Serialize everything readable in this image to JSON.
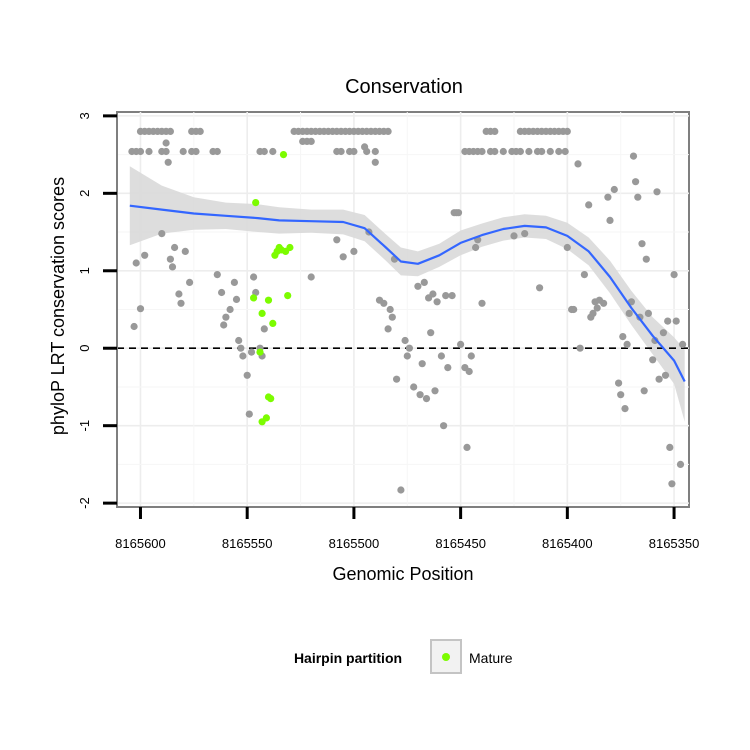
{
  "chart_data": {
    "type": "scatter",
    "title": "Conservation",
    "xlabel": "Genomic Position",
    "ylabel": "phyloP LRT conservation scores",
    "x_reversed": true,
    "xlim": [
      8165611,
      8165343
    ],
    "ylim": [
      -2.05,
      3.05
    ],
    "x_ticks": [
      8165600,
      8165550,
      8165500,
      8165450,
      8165400,
      8165350
    ],
    "x_tick_labels": [
      "8165600",
      "8165550",
      "8165500",
      "8165450",
      "8165400",
      "8165350"
    ],
    "y_ticks": [
      -2,
      -1,
      0,
      1,
      2,
      3
    ],
    "y_tick_labels": [
      "-2",
      "-1",
      "0",
      "1",
      "2",
      "3"
    ],
    "grid": true,
    "reference_line": {
      "y": 0,
      "style": "dashed",
      "color": "#000000"
    },
    "colors": {
      "other": "#999999",
      "mature": "#7cfc00",
      "smooth_line": "#3366ff",
      "confidence_band": "#d9d9d9"
    },
    "legend": {
      "position": "bottom",
      "title": "Hairpin partition",
      "entries": [
        {
          "label": "Mature",
          "color": "#7cfc00"
        }
      ]
    },
    "series": [
      {
        "category": "other",
        "points": [
          [
            8165603,
            0.28
          ],
          [
            8165602,
            1.1
          ],
          [
            8165600,
            0.51
          ],
          [
            8165598,
            1.2
          ],
          [
            8165590,
            1.48
          ],
          [
            8165588,
            2.65
          ],
          [
            8165587,
            2.4
          ],
          [
            8165586,
            1.15
          ],
          [
            8165585,
            1.05
          ],
          [
            8165584,
            1.3
          ],
          [
            8165582,
            0.7
          ],
          [
            8165581,
            0.58
          ],
          [
            8165579,
            1.25
          ],
          [
            8165577,
            0.85
          ],
          [
            8165564,
            0.95
          ],
          [
            8165562,
            0.72
          ],
          [
            8165561,
            0.3
          ],
          [
            8165560,
            0.4
          ],
          [
            8165558,
            0.5
          ],
          [
            8165556,
            0.85
          ],
          [
            8165555,
            0.63
          ],
          [
            8165554,
            0.1
          ],
          [
            8165553,
            0.0
          ],
          [
            8165552,
            -0.1
          ],
          [
            8165550,
            -0.35
          ],
          [
            8165549,
            -0.85
          ],
          [
            8165548,
            -0.05
          ],
          [
            8165547,
            0.92
          ],
          [
            8165546,
            0.72
          ],
          [
            8165544,
            0.0
          ],
          [
            8165543,
            -0.1
          ],
          [
            8165542,
            0.25
          ],
          [
            8165520,
            0.92
          ],
          [
            8165508,
            1.4
          ],
          [
            8165505,
            1.18
          ],
          [
            8165500,
            1.25
          ],
          [
            8165495,
            2.6
          ],
          [
            8165493,
            1.5
          ],
          [
            8165490,
            2.4
          ],
          [
            8165488,
            0.62
          ],
          [
            8165486,
            0.58
          ],
          [
            8165484,
            0.25
          ],
          [
            8165483,
            0.5
          ],
          [
            8165482,
            0.4
          ],
          [
            8165481,
            1.15
          ],
          [
            8165480,
            -0.4
          ],
          [
            8165478,
            -1.83
          ],
          [
            8165476,
            0.1
          ],
          [
            8165475,
            -0.1
          ],
          [
            8165474,
            0.0
          ],
          [
            8165472,
            -0.5
          ],
          [
            8165470,
            0.8
          ],
          [
            8165469,
            -0.6
          ],
          [
            8165468,
            -0.2
          ],
          [
            8165467,
            0.85
          ],
          [
            8165466,
            -0.65
          ],
          [
            8165465,
            0.65
          ],
          [
            8165464,
            0.2
          ],
          [
            8165463,
            0.7
          ],
          [
            8165462,
            -0.55
          ],
          [
            8165461,
            0.6
          ],
          [
            8165459,
            -0.1
          ],
          [
            8165458,
            -1.0
          ],
          [
            8165457,
            0.68
          ],
          [
            8165456,
            -0.25
          ],
          [
            8165454,
            0.68
          ],
          [
            8165453,
            1.75
          ],
          [
            8165452,
            1.75
          ],
          [
            8165451,
            1.75
          ],
          [
            8165450,
            0.05
          ],
          [
            8165448,
            -0.25
          ],
          [
            8165447,
            -1.28
          ],
          [
            8165446,
            -0.3
          ],
          [
            8165445,
            -0.1
          ],
          [
            8165443,
            1.3
          ],
          [
            8165442,
            1.4
          ],
          [
            8165440,
            0.58
          ],
          [
            8165425,
            1.45
          ],
          [
            8165420,
            1.48
          ],
          [
            8165413,
            0.78
          ],
          [
            8165400,
            1.3
          ],
          [
            8165398,
            0.5
          ],
          [
            8165397,
            0.5
          ],
          [
            8165395,
            2.38
          ],
          [
            8165394,
            0.0
          ],
          [
            8165392,
            0.95
          ],
          [
            8165390,
            1.85
          ],
          [
            8165389,
            0.4
          ],
          [
            8165388,
            0.45
          ],
          [
            8165387,
            0.6
          ],
          [
            8165386,
            0.52
          ],
          [
            8165385,
            0.62
          ],
          [
            8165383,
            0.58
          ],
          [
            8165381,
            1.95
          ],
          [
            8165380,
            1.65
          ],
          [
            8165378,
            2.05
          ],
          [
            8165376,
            -0.45
          ],
          [
            8165375,
            -0.6
          ],
          [
            8165374,
            0.15
          ],
          [
            8165373,
            -0.78
          ],
          [
            8165372,
            0.05
          ],
          [
            8165371,
            0.45
          ],
          [
            8165370,
            0.6
          ],
          [
            8165369,
            2.48
          ],
          [
            8165368,
            2.15
          ],
          [
            8165367,
            1.95
          ],
          [
            8165366,
            0.4
          ],
          [
            8165365,
            1.35
          ],
          [
            8165364,
            -0.55
          ],
          [
            8165363,
            1.15
          ],
          [
            8165362,
            0.45
          ],
          [
            8165360,
            -0.15
          ],
          [
            8165359,
            0.1
          ],
          [
            8165358,
            2.02
          ],
          [
            8165357,
            -0.4
          ],
          [
            8165355,
            0.2
          ],
          [
            8165354,
            -0.35
          ],
          [
            8165353,
            0.35
          ],
          [
            8165352,
            -1.28
          ],
          [
            8165351,
            -1.75
          ],
          [
            8165350,
            0.95
          ],
          [
            8165349,
            0.35
          ],
          [
            8165347,
            -1.5
          ],
          [
            8165346,
            0.05
          ],
          [
            8165604,
            2.54
          ],
          [
            8165602,
            2.54
          ],
          [
            8165600,
            2.54
          ],
          [
            8165596,
            2.54
          ],
          [
            8165590,
            2.54
          ],
          [
            8165588,
            2.54
          ],
          [
            8165580,
            2.54
          ],
          [
            8165576,
            2.54
          ],
          [
            8165574,
            2.54
          ],
          [
            8165566,
            2.54
          ],
          [
            8165564,
            2.54
          ],
          [
            8165544,
            2.54
          ],
          [
            8165542,
            2.54
          ],
          [
            8165538,
            2.54
          ],
          [
            8165508,
            2.54
          ],
          [
            8165506,
            2.54
          ],
          [
            8165502,
            2.54
          ],
          [
            8165500,
            2.54
          ],
          [
            8165494,
            2.54
          ],
          [
            8165490,
            2.54
          ],
          [
            8165448,
            2.54
          ],
          [
            8165446,
            2.54
          ],
          [
            8165444,
            2.54
          ],
          [
            8165442,
            2.54
          ],
          [
            8165440,
            2.54
          ],
          [
            8165436,
            2.54
          ],
          [
            8165434,
            2.54
          ],
          [
            8165430,
            2.54
          ],
          [
            8165426,
            2.54
          ],
          [
            8165424,
            2.54
          ],
          [
            8165422,
            2.54
          ],
          [
            8165418,
            2.54
          ],
          [
            8165414,
            2.54
          ],
          [
            8165412,
            2.54
          ],
          [
            8165408,
            2.54
          ],
          [
            8165404,
            2.54
          ],
          [
            8165401,
            2.54
          ],
          [
            8165600,
            2.8
          ],
          [
            8165598,
            2.8
          ],
          [
            8165596,
            2.8
          ],
          [
            8165594,
            2.8
          ],
          [
            8165592,
            2.8
          ],
          [
            8165590,
            2.8
          ],
          [
            8165588,
            2.8
          ],
          [
            8165586,
            2.8
          ],
          [
            8165576,
            2.8
          ],
          [
            8165574,
            2.8
          ],
          [
            8165572,
            2.8
          ],
          [
            8165528,
            2.8
          ],
          [
            8165526,
            2.8
          ],
          [
            8165524,
            2.8
          ],
          [
            8165522,
            2.8
          ],
          [
            8165520,
            2.8
          ],
          [
            8165518,
            2.8
          ],
          [
            8165516,
            2.8
          ],
          [
            8165514,
            2.8
          ],
          [
            8165512,
            2.8
          ],
          [
            8165510,
            2.8
          ],
          [
            8165508,
            2.8
          ],
          [
            8165506,
            2.8
          ],
          [
            8165504,
            2.8
          ],
          [
            8165502,
            2.8
          ],
          [
            8165500,
            2.8
          ],
          [
            8165498,
            2.8
          ],
          [
            8165496,
            2.8
          ],
          [
            8165494,
            2.8
          ],
          [
            8165492,
            2.8
          ],
          [
            8165490,
            2.8
          ],
          [
            8165488,
            2.8
          ],
          [
            8165486,
            2.8
          ],
          [
            8165484,
            2.8
          ],
          [
            8165438,
            2.8
          ],
          [
            8165436,
            2.8
          ],
          [
            8165434,
            2.8
          ],
          [
            8165422,
            2.8
          ],
          [
            8165420,
            2.8
          ],
          [
            8165418,
            2.8
          ],
          [
            8165416,
            2.8
          ],
          [
            8165414,
            2.8
          ],
          [
            8165412,
            2.8
          ],
          [
            8165410,
            2.8
          ],
          [
            8165408,
            2.8
          ],
          [
            8165406,
            2.8
          ],
          [
            8165404,
            2.8
          ],
          [
            8165402,
            2.8
          ],
          [
            8165400,
            2.8
          ],
          [
            8165524,
            2.67
          ],
          [
            8165522,
            2.67
          ],
          [
            8165520,
            2.67
          ]
        ]
      },
      {
        "category": "mature",
        "points": [
          [
            8165533,
            2.5
          ],
          [
            8165546,
            1.88
          ],
          [
            8165537,
            1.2
          ],
          [
            8165536,
            1.25
          ],
          [
            8165535,
            1.3
          ],
          [
            8165534,
            1.27
          ],
          [
            8165532,
            1.25
          ],
          [
            8165530,
            1.3
          ],
          [
            8165531,
            0.68
          ],
          [
            8165538,
            0.32
          ],
          [
            8165540,
            0.62
          ],
          [
            8165543,
            0.45
          ],
          [
            8165547,
            0.65
          ],
          [
            8165544,
            -0.05
          ],
          [
            8165540,
            -0.63
          ],
          [
            8165539,
            -0.65
          ],
          [
            8165541,
            -0.9
          ],
          [
            8165543,
            -0.95
          ]
        ]
      }
    ],
    "smooth_curve": [
      [
        8165605,
        1.84
      ],
      [
        8165590,
        1.79
      ],
      [
        8165575,
        1.74
      ],
      [
        8165560,
        1.71
      ],
      [
        8165545,
        1.68
      ],
      [
        8165535,
        1.65
      ],
      [
        8165520,
        1.64
      ],
      [
        8165505,
        1.63
      ],
      [
        8165495,
        1.55
      ],
      [
        8165485,
        1.3
      ],
      [
        8165478,
        1.12
      ],
      [
        8165470,
        1.09
      ],
      [
        8165460,
        1.2
      ],
      [
        8165450,
        1.36
      ],
      [
        8165440,
        1.46
      ],
      [
        8165430,
        1.54
      ],
      [
        8165420,
        1.58
      ],
      [
        8165410,
        1.56
      ],
      [
        8165400,
        1.45
      ],
      [
        8165390,
        1.25
      ],
      [
        8165380,
        0.92
      ],
      [
        8165370,
        0.52
      ],
      [
        8165360,
        0.16
      ],
      [
        8165350,
        -0.16
      ],
      [
        8165345,
        -0.43
      ]
    ],
    "smooth_band": {
      "upper": [
        [
          8165605,
          2.35
        ],
        [
          8165590,
          2.1
        ],
        [
          8165575,
          1.95
        ],
        [
          8165560,
          1.88
        ],
        [
          8165545,
          1.86
        ],
        [
          8165535,
          1.82
        ],
        [
          8165520,
          1.79
        ],
        [
          8165505,
          1.79
        ],
        [
          8165495,
          1.72
        ],
        [
          8165485,
          1.47
        ],
        [
          8165478,
          1.3
        ],
        [
          8165470,
          1.25
        ],
        [
          8165460,
          1.35
        ],
        [
          8165450,
          1.52
        ],
        [
          8165440,
          1.61
        ],
        [
          8165430,
          1.69
        ],
        [
          8165420,
          1.73
        ],
        [
          8165410,
          1.71
        ],
        [
          8165400,
          1.62
        ],
        [
          8165390,
          1.43
        ],
        [
          8165380,
          1.13
        ],
        [
          8165370,
          0.74
        ],
        [
          8165360,
          0.4
        ],
        [
          8165350,
          0.14
        ],
        [
          8165345,
          -0.02
        ]
      ],
      "lower": [
        [
          8165605,
          1.33
        ],
        [
          8165590,
          1.48
        ],
        [
          8165575,
          1.53
        ],
        [
          8165560,
          1.54
        ],
        [
          8165545,
          1.5
        ],
        [
          8165535,
          1.48
        ],
        [
          8165520,
          1.49
        ],
        [
          8165505,
          1.47
        ],
        [
          8165495,
          1.38
        ],
        [
          8165485,
          1.13
        ],
        [
          8165478,
          0.94
        ],
        [
          8165470,
          0.93
        ],
        [
          8165460,
          1.05
        ],
        [
          8165450,
          1.2
        ],
        [
          8165440,
          1.31
        ],
        [
          8165430,
          1.39
        ],
        [
          8165420,
          1.43
        ],
        [
          8165410,
          1.41
        ],
        [
          8165400,
          1.28
        ],
        [
          8165390,
          1.07
        ],
        [
          8165380,
          0.71
        ],
        [
          8165370,
          0.3
        ],
        [
          8165360,
          -0.08
        ],
        [
          8165350,
          -0.46
        ],
        [
          8165345,
          -0.95
        ]
      ]
    }
  }
}
